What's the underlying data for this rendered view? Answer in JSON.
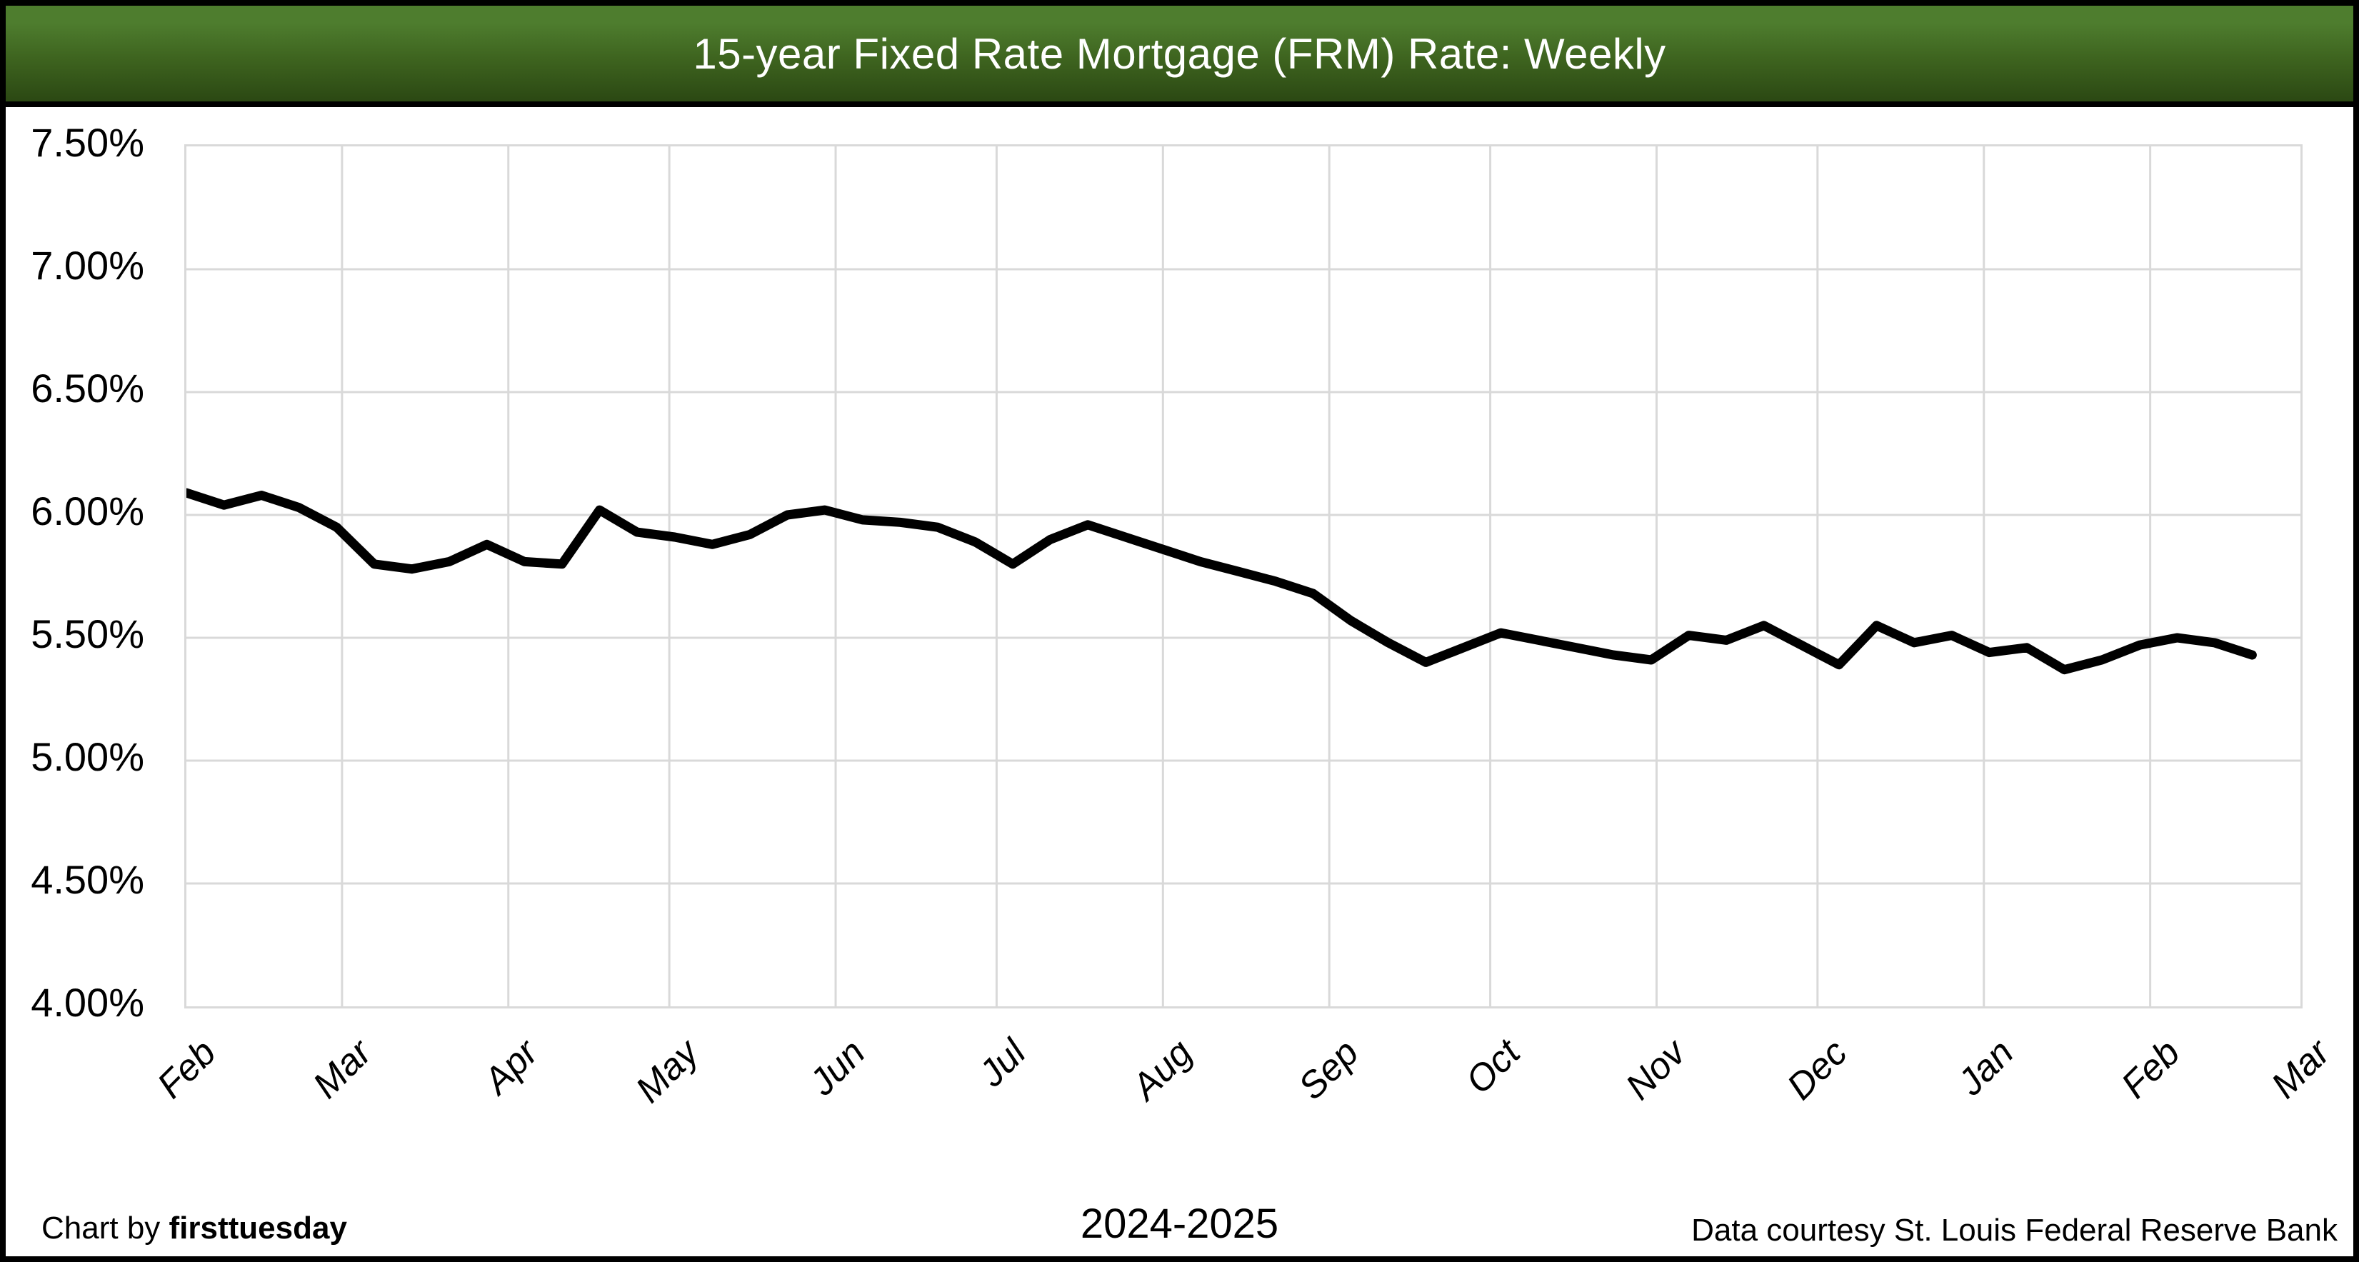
{
  "title": "15-year Fixed Rate Mortgage (FRM) Rate: Weekly",
  "footer": {
    "left_prefix": "Chart by ",
    "left_brand": "firsttuesday",
    "center": "2024-2025",
    "right": "Data courtesy St. Louis Federal Reserve Bank"
  },
  "colors": {
    "title_bar_top": "#4e7d2e",
    "title_bar_bottom": "#2b4813",
    "title_text": "#ffffff",
    "line": "#000000",
    "gridline": "#d9d9d9",
    "border": "#000000",
    "background": "#ffffff"
  },
  "chart_data": {
    "type": "line",
    "title": "15-year Fixed Rate Mortgage (FRM) Rate: Weekly",
    "frequency": "weekly",
    "x_axis": {
      "tick_labels": [
        "Feb",
        "Mar",
        "Apr",
        "May",
        "Jun",
        "Jul",
        "Aug",
        "Sep",
        "Oct",
        "Nov",
        "Dec",
        "Jan",
        "Feb",
        "Mar"
      ],
      "period_label": "2024-2025"
    },
    "y_axis": {
      "tick_labels": [
        "7.50%",
        "7.00%",
        "6.50%",
        "6.00%",
        "5.50%",
        "5.00%",
        "4.50%",
        "4.00%"
      ],
      "min": 4.0,
      "max": 7.5,
      "gridline_step_pct": 0.5,
      "unit": "percent"
    },
    "grid": true,
    "legend_position": "none",
    "series": [
      {
        "name": "15-year FRM rate",
        "points_per_month": [
          5,
          4,
          4,
          5,
          4,
          4,
          5,
          4,
          5,
          4,
          4,
          5,
          3
        ],
        "values": [
          6.09,
          6.04,
          6.08,
          6.03,
          5.95,
          5.8,
          5.78,
          5.81,
          5.88,
          5.81,
          5.8,
          6.02,
          5.93,
          5.91,
          5.88,
          5.92,
          6.0,
          6.02,
          5.98,
          5.97,
          5.95,
          5.89,
          5.8,
          5.9,
          5.96,
          5.91,
          5.86,
          5.81,
          5.77,
          5.73,
          5.68,
          5.57,
          5.48,
          5.4,
          5.46,
          5.52,
          5.49,
          5.46,
          5.43,
          5.41,
          5.51,
          5.49,
          5.55,
          5.47,
          5.39,
          5.55,
          5.48,
          5.51,
          5.44,
          5.46,
          5.37,
          5.41,
          5.47,
          5.5,
          5.48,
          5.43
        ]
      }
    ]
  }
}
